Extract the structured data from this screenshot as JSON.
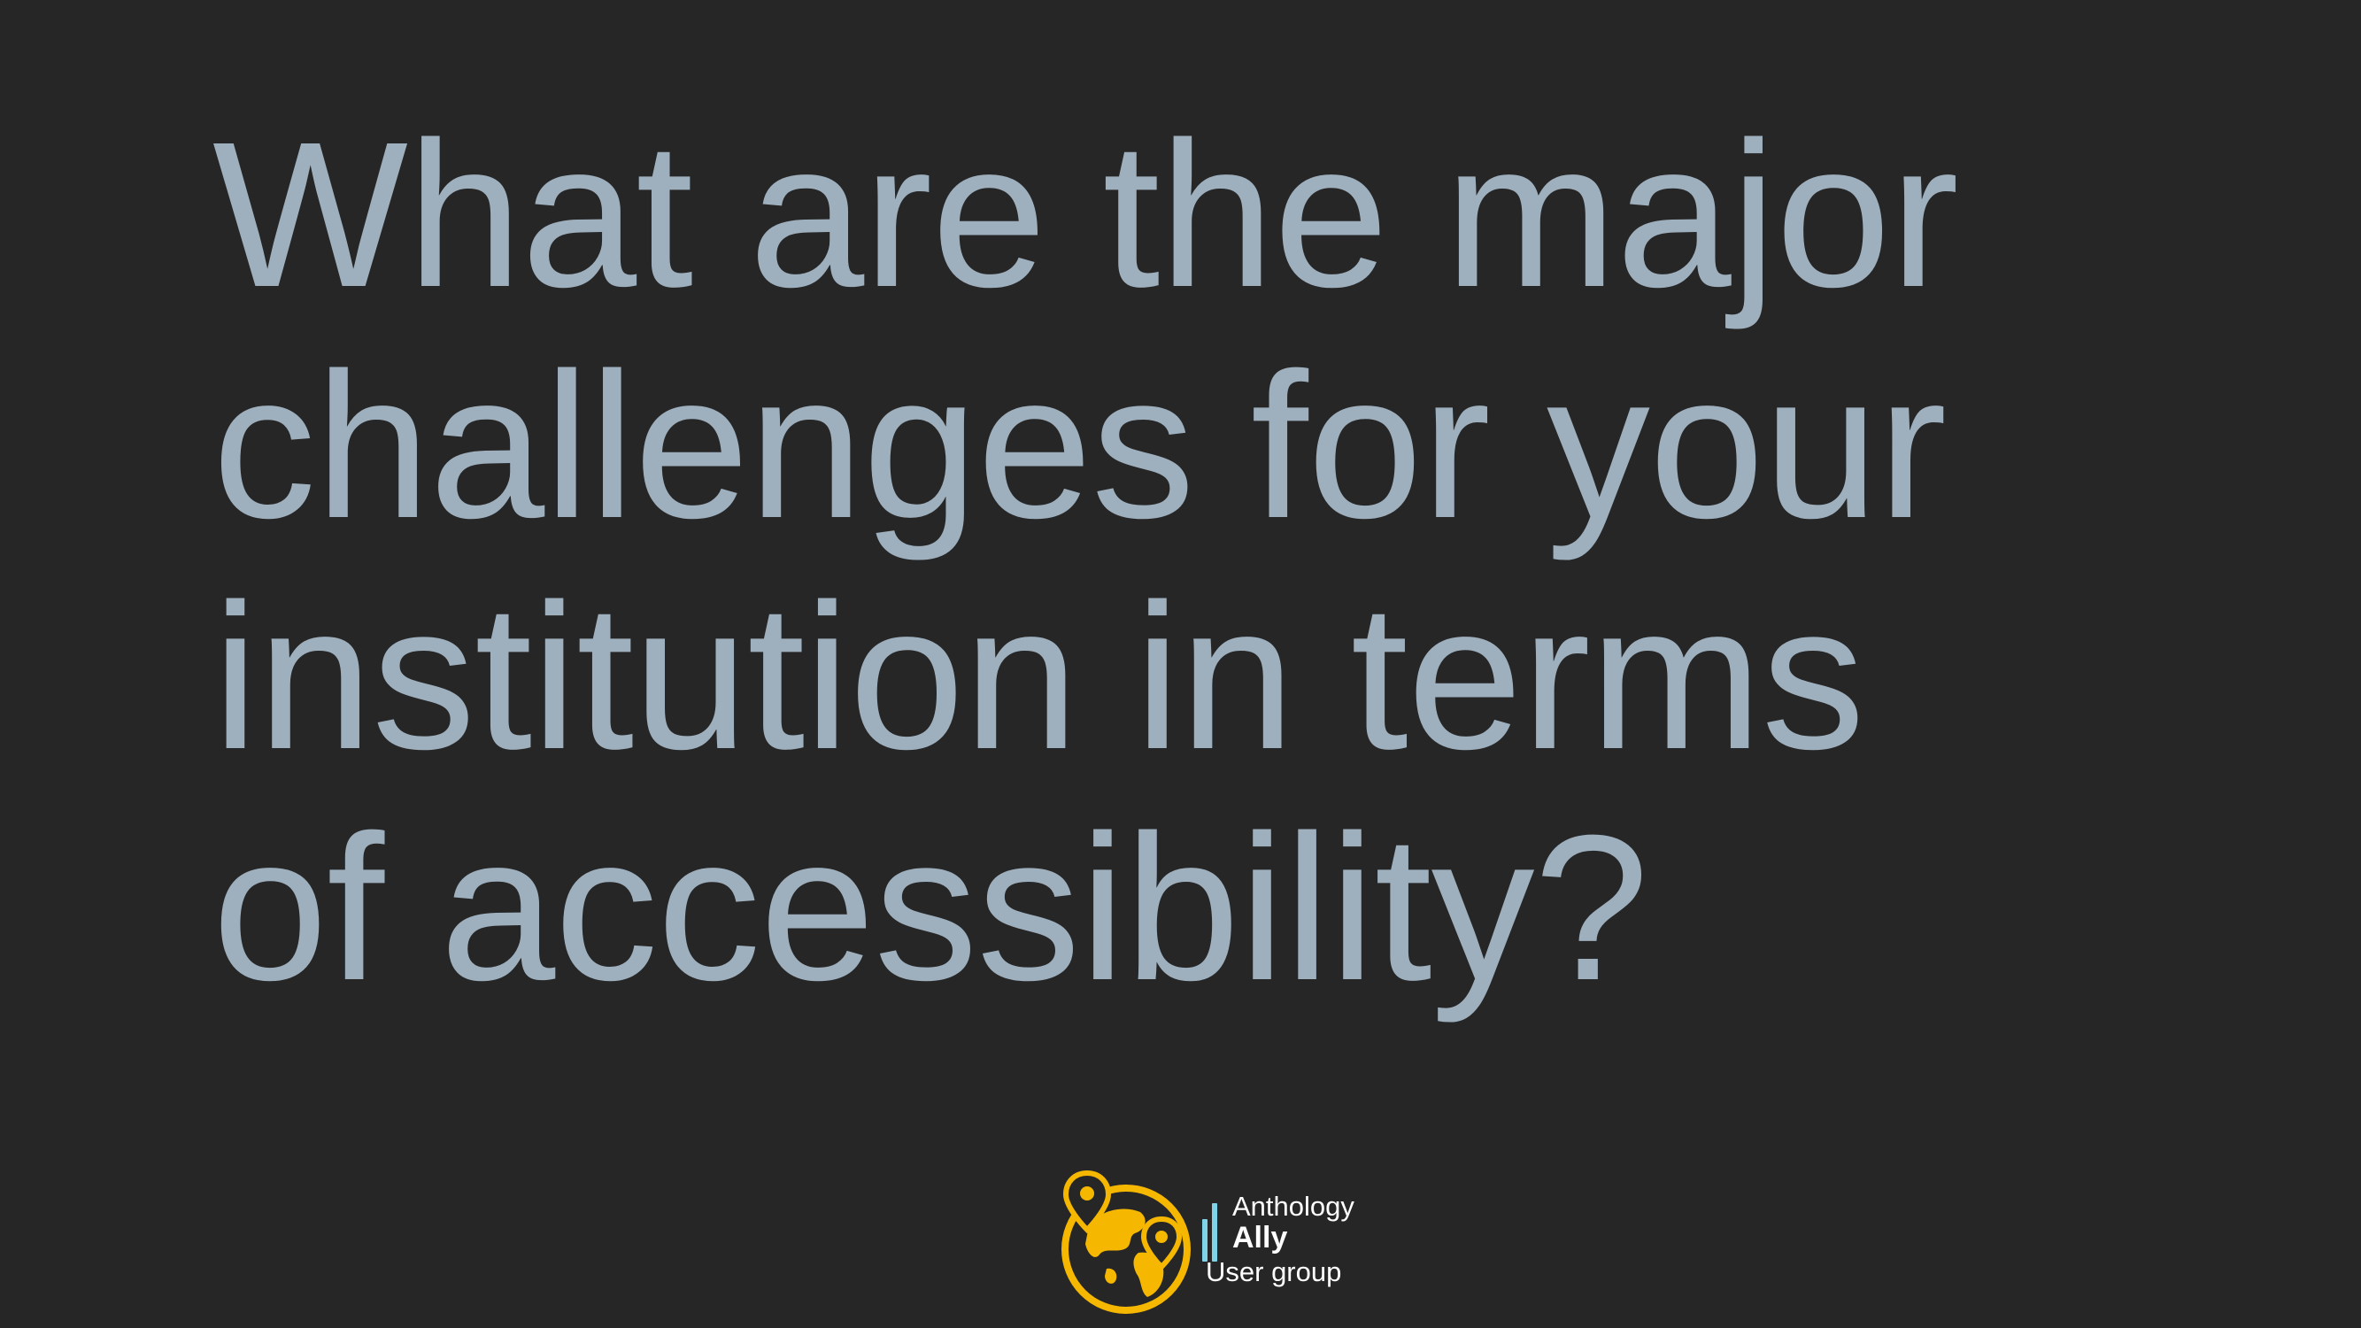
{
  "slide": {
    "background_color": "#262626",
    "text_color": "#9eafbd",
    "question_lines": [
      "What are the major",
      "challenges for your",
      "institution in terms",
      "of accessibility?"
    ]
  },
  "logo": {
    "accent_color": "#f5b700",
    "bar_color": "#7fd3e8",
    "icons": [
      "globe-icon",
      "map-pin-icon",
      "bars-icon"
    ],
    "line1": "Anthology",
    "line2": "Ally",
    "line3": "User group"
  }
}
